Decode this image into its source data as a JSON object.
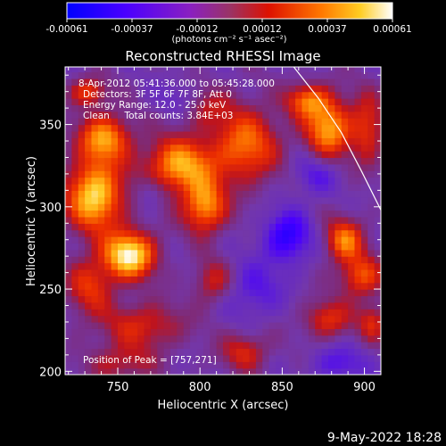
{
  "chart_data": {
    "type": "heatmap",
    "title": "Reconstructed RHESSI Image",
    "xlabel": "Heliocentric X (arcsec)",
    "ylabel": "Heliocentric Y (arcsec)",
    "xlim": [
      718,
      910
    ],
    "ylim": [
      198,
      385
    ],
    "x_ticks": [
      750,
      800,
      850,
      900
    ],
    "y_ticks": [
      200,
      250,
      300,
      350
    ],
    "grid": false,
    "colorbar": {
      "ticks": [
        "-0.00061",
        "-0.00037",
        "-0.00012",
        "0.00012",
        "0.00037",
        "0.00061"
      ],
      "min": -0.00061,
      "max": 0.00061,
      "units": "(photons cm⁻² s⁻¹ asec⁻²)"
    },
    "annotations": [
      "8-Apr-2012 05:41:36.000 to 05:45:28.000",
      "Detectors: 3F 5F 6F 7F 8F, Att 0",
      "Energy Range: 12.0 - 25.0 keV",
      "Clean     Total counts: 3.84E+03"
    ],
    "peak_label": "Position of Peak = [757,271]",
    "peak_position": [
      757,
      271
    ],
    "limb_arc": [
      [
        857,
        385
      ],
      [
        872,
        366
      ],
      [
        886,
        345
      ],
      [
        898,
        322
      ],
      [
        910,
        298
      ]
    ],
    "blobs": [
      {
        "x": 757,
        "y": 271,
        "sx": 11,
        "sy": 10,
        "a": 1.0
      },
      {
        "x": 736,
        "y": 307,
        "sx": 12,
        "sy": 15,
        "a": 0.92
      },
      {
        "x": 742,
        "y": 342,
        "sx": 11,
        "sy": 10,
        "a": 0.72
      },
      {
        "x": 788,
        "y": 325,
        "sx": 15,
        "sy": 12,
        "a": 0.78
      },
      {
        "x": 803,
        "y": 300,
        "sx": 9,
        "sy": 11,
        "a": 0.72
      },
      {
        "x": 828,
        "y": 338,
        "sx": 14,
        "sy": 16,
        "a": 0.62
      },
      {
        "x": 878,
        "y": 348,
        "sx": 10,
        "sy": 13,
        "a": 0.76
      },
      {
        "x": 865,
        "y": 365,
        "sx": 9,
        "sy": 7,
        "a": 0.55
      },
      {
        "x": 902,
        "y": 348,
        "sx": 7,
        "sy": 15,
        "a": 0.45
      },
      {
        "x": 888,
        "y": 280,
        "sx": 8,
        "sy": 9,
        "a": 0.65
      },
      {
        "x": 898,
        "y": 258,
        "sx": 9,
        "sy": 9,
        "a": 0.55
      },
      {
        "x": 878,
        "y": 232,
        "sx": 10,
        "sy": 8,
        "a": 0.45
      },
      {
        "x": 905,
        "y": 230,
        "sx": 6,
        "sy": 8,
        "a": 0.4
      },
      {
        "x": 733,
        "y": 252,
        "sx": 10,
        "sy": 12,
        "a": 0.45
      },
      {
        "x": 765,
        "y": 228,
        "sx": 18,
        "sy": 10,
        "a": 0.4
      },
      {
        "x": 752,
        "y": 205,
        "sx": 14,
        "sy": 8,
        "a": 0.32
      },
      {
        "x": 808,
        "y": 255,
        "sx": 8,
        "sy": 9,
        "a": 0.38
      },
      {
        "x": 827,
        "y": 212,
        "sx": 10,
        "sy": 8,
        "a": 0.4
      },
      {
        "x": 800,
        "y": 362,
        "sx": 12,
        "sy": 9,
        "a": 0.35
      },
      {
        "x": 732,
        "y": 370,
        "sx": 8,
        "sy": 6,
        "a": 0.5
      },
      {
        "x": 853,
        "y": 282,
        "sx": 10,
        "sy": 11,
        "a": -0.5
      },
      {
        "x": 790,
        "y": 365,
        "sx": 10,
        "sy": 8,
        "a": -0.3
      },
      {
        "x": 870,
        "y": 320,
        "sx": 10,
        "sy": 9,
        "a": -0.28
      },
      {
        "x": 833,
        "y": 250,
        "sx": 12,
        "sy": 12,
        "a": -0.28
      },
      {
        "x": 885,
        "y": 205,
        "sx": 12,
        "sy": 8,
        "a": -0.28
      },
      {
        "x": 770,
        "y": 310,
        "sx": 6,
        "sy": 7,
        "a": -0.25
      }
    ]
  },
  "footer": {
    "date": "9-May-2022 18:28"
  }
}
